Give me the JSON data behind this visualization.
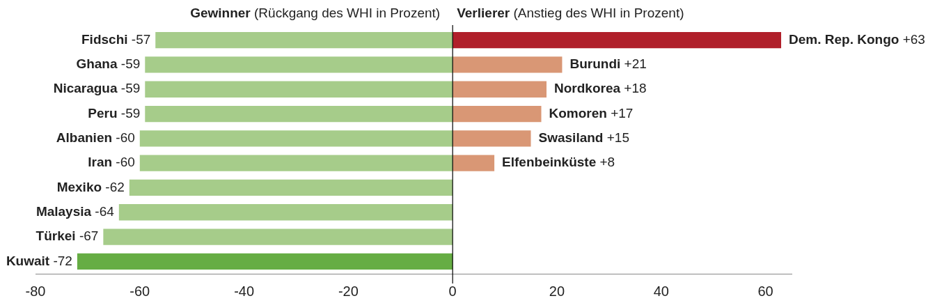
{
  "chart_data": {
    "type": "bar",
    "orientation": "horizontal",
    "stacked": true,
    "categories": [
      "Fidschi",
      "Ghana",
      "Nicaragua",
      "Peru",
      "Albanien",
      "Iran",
      "Mexiko",
      "Malaysia",
      "Türkei",
      "Kuwait"
    ],
    "series": [
      {
        "name": "Gewinner (Rückgang des WHI in Prozent)",
        "colors": [
          "#a6cc8a",
          "#a6cc8a",
          "#a6cc8a",
          "#a6cc8a",
          "#a6cc8a",
          "#a6cc8a",
          "#a6cc8a",
          "#a6cc8a",
          "#a6cc8a",
          "#66ad44"
        ],
        "values": [
          -57,
          -59,
          -59,
          -59,
          -60,
          -60,
          -62,
          -64,
          -67,
          -72
        ],
        "value_labels": [
          "-57",
          "-59",
          "-59",
          "-59",
          "-60",
          "-60",
          "-62",
          "-64",
          "-67",
          "-72"
        ]
      },
      {
        "name": "Verlierer (Anstieg des WHI in Prozent)",
        "colors": [
          "#b01f2a",
          "#d99775",
          "#d99775",
          "#d99775",
          "#d99775",
          "#d99775",
          null,
          null,
          null,
          null
        ],
        "values": [
          63,
          21,
          18,
          17,
          15,
          8,
          null,
          null,
          null,
          null
        ],
        "value_labels": [
          "Dem. Rep. Kongo +63",
          "Burundi +21",
          "Nordkorea +18",
          "Komoren +17",
          "Swasiland +15",
          "Elfenbeinküste +8",
          null,
          null,
          null,
          null
        ]
      }
    ],
    "xlim": [
      -80,
      65
    ],
    "xticks": [
      -80,
      -60,
      -40,
      -20,
      0,
      20,
      40,
      60
    ],
    "ref_lines": [
      {
        "axis": "x",
        "value": 0,
        "color": "#000000"
      }
    ],
    "grid": false,
    "legend": "top"
  }
}
